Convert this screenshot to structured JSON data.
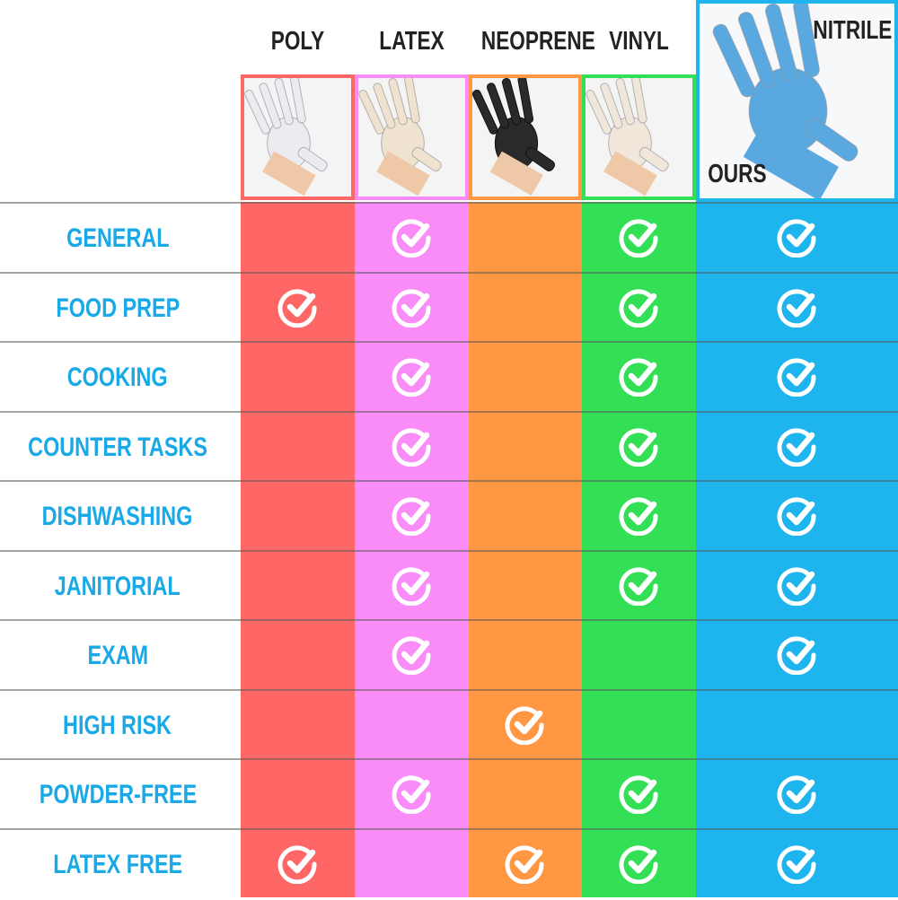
{
  "columns": [
    {
      "name": "POLY",
      "color": "#FF6767"
    },
    {
      "name": "LATEX",
      "color": "#FA8CF8"
    },
    {
      "name": "NEOPRENE",
      "color": "#FF9743"
    },
    {
      "name": "VINYL",
      "color": "#33E055"
    },
    {
      "name": "NITRILE",
      "color": "#1EB5EF",
      "badge": "OURS"
    }
  ],
  "rows": [
    {
      "label": "GENERAL",
      "checks": [
        false,
        true,
        false,
        true,
        true
      ]
    },
    {
      "label": "FOOD PREP",
      "checks": [
        true,
        true,
        false,
        true,
        true
      ]
    },
    {
      "label": "COOKING",
      "checks": [
        false,
        true,
        false,
        true,
        true
      ]
    },
    {
      "label": "COUNTER TASKS",
      "checks": [
        false,
        true,
        false,
        true,
        true
      ]
    },
    {
      "label": "DISHWASHING",
      "checks": [
        false,
        true,
        false,
        true,
        true
      ]
    },
    {
      "label": "JANITORIAL",
      "checks": [
        false,
        true,
        false,
        true,
        true
      ]
    },
    {
      "label": "EXAM",
      "checks": [
        false,
        true,
        false,
        false,
        true
      ]
    },
    {
      "label": "HIGH RISK",
      "checks": [
        false,
        false,
        true,
        false,
        false
      ]
    },
    {
      "label": "POWDER-FREE",
      "checks": [
        false,
        true,
        false,
        true,
        true
      ]
    },
    {
      "label": "LATEX FREE",
      "checks": [
        true,
        false,
        true,
        true,
        true
      ]
    }
  ]
}
